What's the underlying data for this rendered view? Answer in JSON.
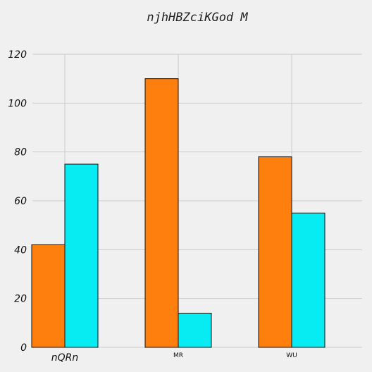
{
  "chart_data": {
    "type": "bar",
    "title": "njhHBZciKGod M",
    "xlabel": "",
    "ylabel": "",
    "categories": [
      "nQRn",
      "MR",
      "WU"
    ],
    "series": [
      {
        "values": [
          42,
          110,
          78
        ],
        "color": "#ff7f0e"
      },
      {
        "values": [
          75,
          14,
          55
        ],
        "color": "#06ecf2"
      }
    ],
    "ylim": [
      0,
      120
    ],
    "yticks": [
      "0",
      "20",
      "40",
      "60",
      "80",
      "100",
      "120"
    ],
    "grid": true,
    "legend": "none"
  },
  "colors": {
    "background": "#f0f0f0",
    "grid": "#cbcbcb",
    "bar_edge": "#111111"
  }
}
